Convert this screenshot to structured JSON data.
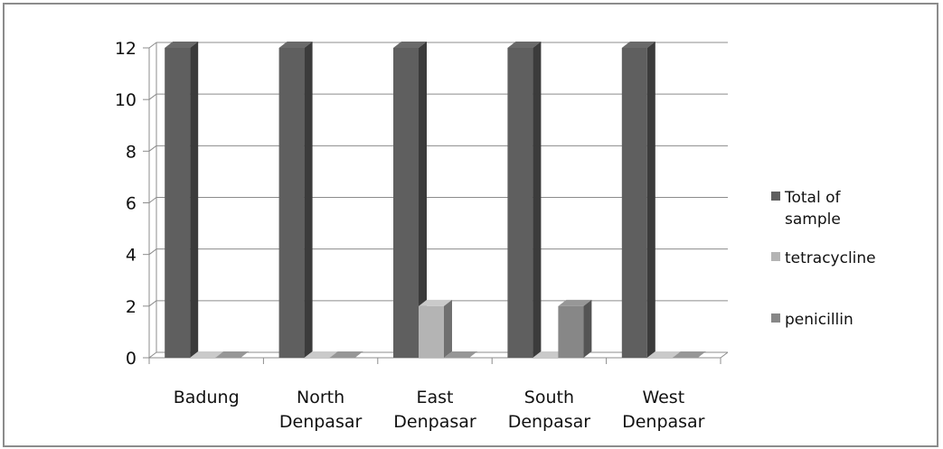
{
  "chart_data": {
    "type": "bar",
    "style": "3d-clustered-column",
    "categories": [
      [
        "Badung"
      ],
      [
        "North",
        "Denpasar"
      ],
      [
        "East",
        "Denpasar"
      ],
      [
        "South",
        "Denpasar"
      ],
      [
        "West",
        "Denpasar"
      ]
    ],
    "series": [
      {
        "name": "Total of sample",
        "legend_lines": [
          "Total of",
          "sample"
        ],
        "color": "#5f5f5f",
        "values": [
          12,
          12,
          12,
          12,
          12
        ]
      },
      {
        "name": "tetracycline",
        "legend_lines": [
          "tetracycline"
        ],
        "color": "#b4b4b4",
        "values": [
          0,
          0,
          2,
          0,
          0
        ]
      },
      {
        "name": "penicillin",
        "legend_lines": [
          "penicillin"
        ],
        "color": "#878787",
        "values": [
          0,
          0,
          0,
          2,
          0
        ]
      }
    ],
    "ylim": [
      0,
      12
    ],
    "yticks": [
      0,
      2,
      4,
      6,
      8,
      10,
      12
    ],
    "grid": true,
    "legend_position": "right"
  }
}
